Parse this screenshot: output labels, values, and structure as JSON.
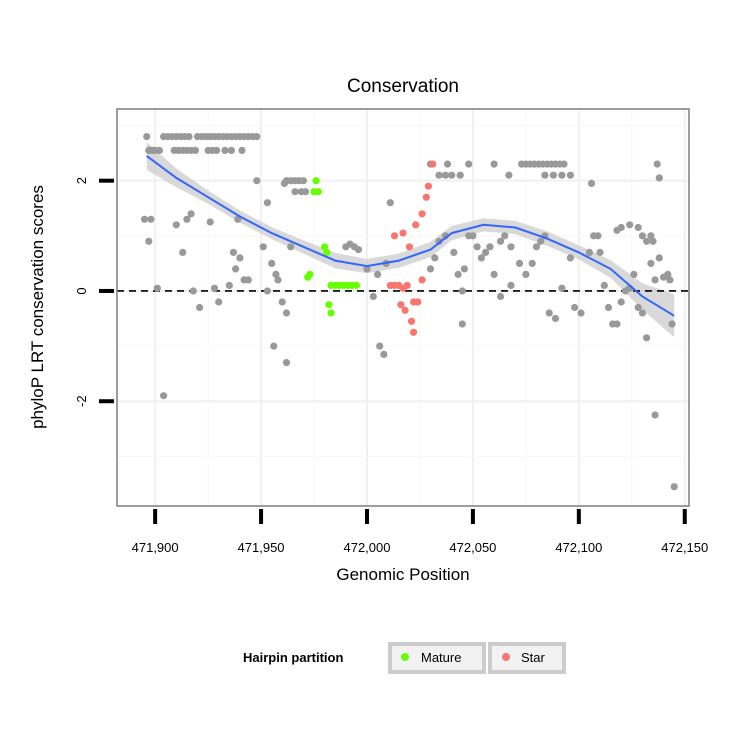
{
  "chart_data": {
    "type": "scatter",
    "title": "Conservation",
    "xlabel": "Genomic Position",
    "ylabel": "phyloP LRT conservation scores",
    "xlim": [
      471882,
      472152
    ],
    "ylim": [
      -3.9,
      3.3
    ],
    "x_ticks": [
      471900,
      471950,
      472000,
      472050,
      472100,
      472150
    ],
    "x_tick_labels": [
      "471,900",
      "471,950",
      "472,000",
      "472,050",
      "472,100",
      "472,150"
    ],
    "y_ticks": [
      -2,
      0,
      2
    ],
    "y_tick_labels": [
      "-2",
      "0",
      "2"
    ],
    "reference_line": {
      "y": 0,
      "style": "dashed"
    },
    "grid": true,
    "legend": {
      "title": "Hairpin partition",
      "placement": "bottom",
      "entries": [
        {
          "label": "Mature",
          "color": "#66ff00"
        },
        {
          "label": "Star",
          "color": "#f8766d"
        }
      ]
    },
    "colors": {
      "other": "#999999",
      "mature": "#66ff00",
      "star": "#f8766d",
      "smooth": "#3366ff",
      "ribbon": "#cccccc"
    },
    "series": [
      {
        "name": "Other",
        "points": [
          [
            471896,
            2.8
          ],
          [
            471897,
            2.55
          ],
          [
            471898,
            2.55
          ],
          [
            471899,
            2.55
          ],
          [
            471900,
            2.55
          ],
          [
            471902,
            2.55
          ],
          [
            471904,
            2.8
          ],
          [
            471906,
            2.8
          ],
          [
            471908,
            2.8
          ],
          [
            471910,
            2.8
          ],
          [
            471912,
            2.8
          ],
          [
            471914,
            2.8
          ],
          [
            471916,
            2.8
          ],
          [
            471909,
            2.55
          ],
          [
            471911,
            2.55
          ],
          [
            471913,
            2.55
          ],
          [
            471915,
            2.55
          ],
          [
            471917,
            2.55
          ],
          [
            471919,
            2.55
          ],
          [
            471920,
            2.8
          ],
          [
            471922,
            2.8
          ],
          [
            471924,
            2.8
          ],
          [
            471926,
            2.8
          ],
          [
            471928,
            2.8
          ],
          [
            471930,
            2.8
          ],
          [
            471932,
            2.8
          ],
          [
            471934,
            2.8
          ],
          [
            471936,
            2.8
          ],
          [
            471938,
            2.8
          ],
          [
            471940,
            2.8
          ],
          [
            471942,
            2.8
          ],
          [
            471944,
            2.8
          ],
          [
            471946,
            2.8
          ],
          [
            471948,
            2.8
          ],
          [
            471925,
            2.55
          ],
          [
            471927,
            2.55
          ],
          [
            471929,
            2.55
          ],
          [
            471933,
            2.55
          ],
          [
            471936,
            2.55
          ],
          [
            471941,
            2.55
          ],
          [
            471962,
            2.0
          ],
          [
            471964,
            2.0
          ],
          [
            471966,
            2.0
          ],
          [
            471968,
            2.0
          ],
          [
            471970,
            2.0
          ],
          [
            471966,
            1.8
          ],
          [
            471969,
            1.8
          ],
          [
            471971,
            1.8
          ],
          [
            472030,
            2.3
          ],
          [
            472038,
            2.3
          ],
          [
            472034,
            2.1
          ],
          [
            472037,
            2.1
          ],
          [
            472040,
            2.1
          ],
          [
            472044,
            2.1
          ],
          [
            472048,
            2.3
          ],
          [
            472060,
            2.3
          ],
          [
            472067,
            2.1
          ],
          [
            472073,
            2.3
          ],
          [
            472075,
            2.3
          ],
          [
            472077,
            2.3
          ],
          [
            472079,
            2.3
          ],
          [
            472081,
            2.3
          ],
          [
            472083,
            2.3
          ],
          [
            472085,
            2.3
          ],
          [
            472087,
            2.3
          ],
          [
            472089,
            2.3
          ],
          [
            472091,
            2.3
          ],
          [
            472093,
            2.3
          ],
          [
            472084,
            2.1
          ],
          [
            472088,
            2.1
          ],
          [
            472092,
            2.1
          ],
          [
            472096,
            2.1
          ],
          [
            472137,
            2.3
          ],
          [
            472138,
            2.05
          ],
          [
            472106,
            1.95
          ],
          [
            471895,
            1.3
          ],
          [
            471898,
            1.3
          ],
          [
            471910,
            1.2
          ],
          [
            471915,
            1.3
          ],
          [
            471917,
            1.4
          ],
          [
            471926,
            1.25
          ],
          [
            471939,
            1.3
          ],
          [
            471948,
            2.0
          ],
          [
            471953,
            1.6
          ],
          [
            471961,
            1.95
          ],
          [
            471897,
            0.9
          ],
          [
            471901,
            0.05
          ],
          [
            471913,
            0.7
          ],
          [
            471918,
            0.0
          ],
          [
            471921,
            -0.3
          ],
          [
            471928,
            0.05
          ],
          [
            471930,
            -0.2
          ],
          [
            471935,
            0.1
          ],
          [
            471937,
            0.7
          ],
          [
            471938,
            0.4
          ],
          [
            471940,
            0.6
          ],
          [
            471942,
            0.2
          ],
          [
            471944,
            0.2
          ],
          [
            471951,
            0.8
          ],
          [
            471953,
            0.0
          ],
          [
            471955,
            0.5
          ],
          [
            471957,
            0.3
          ],
          [
            471958,
            0.2
          ],
          [
            471960,
            -0.2
          ],
          [
            471962,
            -0.4
          ],
          [
            471964,
            0.8
          ],
          [
            471956,
            -1.0
          ],
          [
            471962,
            -1.3
          ],
          [
            471904,
            -1.9
          ],
          [
            471990,
            0.8
          ],
          [
            471992,
            0.85
          ],
          [
            471994,
            0.8
          ],
          [
            471996,
            0.75
          ],
          [
            472000,
            0.4
          ],
          [
            472005,
            0.3
          ],
          [
            472009,
            0.5
          ],
          [
            472006,
            -1.0
          ],
          [
            472008,
            -1.15
          ],
          [
            472003,
            -0.1
          ],
          [
            472011,
            1.6
          ],
          [
            472030,
            0.4
          ],
          [
            472032,
            0.6
          ],
          [
            472034,
            0.9
          ],
          [
            472037,
            1.0
          ],
          [
            472041,
            0.7
          ],
          [
            472043,
            0.3
          ],
          [
            472045,
            0.0
          ],
          [
            472046,
            0.4
          ],
          [
            472048,
            1.0
          ],
          [
            472050,
            1.0
          ],
          [
            472052,
            0.8
          ],
          [
            472054,
            0.6
          ],
          [
            472056,
            0.7
          ],
          [
            472058,
            0.8
          ],
          [
            472060,
            0.3
          ],
          [
            472063,
            0.9
          ],
          [
            472065,
            1.0
          ],
          [
            472068,
            0.8
          ],
          [
            472072,
            0.5
          ],
          [
            472075,
            0.3
          ],
          [
            472078,
            0.5
          ],
          [
            472080,
            0.8
          ],
          [
            472082,
            0.9
          ],
          [
            472084,
            1.0
          ],
          [
            472045,
            -0.6
          ],
          [
            472063,
            -0.1
          ],
          [
            472068,
            0.1
          ],
          [
            472086,
            -0.4
          ],
          [
            472089,
            -0.5
          ],
          [
            472092,
            0.05
          ],
          [
            472096,
            0.6
          ],
          [
            472098,
            -0.3
          ],
          [
            472101,
            -0.4
          ],
          [
            472105,
            0.7
          ],
          [
            472107,
            1.0
          ],
          [
            472109,
            1.0
          ],
          [
            472110,
            0.7
          ],
          [
            472112,
            0.1
          ],
          [
            472114,
            -0.3
          ],
          [
            472116,
            -0.6
          ],
          [
            472118,
            -0.6
          ],
          [
            472120,
            -0.2
          ],
          [
            472122,
            0.0
          ],
          [
            472124,
            0.05
          ],
          [
            472126,
            0.3
          ],
          [
            472128,
            -0.3
          ],
          [
            472130,
            -0.4
          ],
          [
            472132,
            -0.85
          ],
          [
            472134,
            0.5
          ],
          [
            472135,
            0.9
          ],
          [
            472136,
            0.2
          ],
          [
            472138,
            0.6
          ],
          [
            472140,
            0.25
          ],
          [
            472142,
            0.3
          ],
          [
            472143,
            0.2
          ],
          [
            472144,
            -0.6
          ],
          [
            472128,
            1.15
          ],
          [
            472130,
            1.0
          ],
          [
            472132,
            0.9
          ],
          [
            472134,
            1.0
          ],
          [
            472124,
            1.2
          ],
          [
            472120,
            1.15
          ],
          [
            472118,
            1.1
          ],
          [
            472136,
            -2.25
          ],
          [
            472145,
            -3.55
          ]
        ]
      },
      {
        "name": "Mature",
        "points": [
          [
            471976,
            2.0
          ],
          [
            471975,
            1.8
          ],
          [
            471977,
            1.8
          ],
          [
            471972,
            0.25
          ],
          [
            471973,
            0.3
          ],
          [
            471980,
            0.8
          ],
          [
            471981,
            0.7
          ],
          [
            471982,
            -0.25
          ],
          [
            471983,
            -0.4
          ],
          [
            471983,
            0.1
          ],
          [
            471985,
            0.1
          ],
          [
            471987,
            0.1
          ],
          [
            471989,
            0.1
          ],
          [
            471991,
            0.1
          ],
          [
            471993,
            0.1
          ],
          [
            471995,
            0.1
          ]
        ]
      },
      {
        "name": "Star",
        "points": [
          [
            472031,
            2.3
          ],
          [
            472029,
            1.9
          ],
          [
            472028,
            1.7
          ],
          [
            472026,
            1.4
          ],
          [
            472023,
            1.2
          ],
          [
            472017,
            1.05
          ],
          [
            472020,
            0.8
          ],
          [
            472013,
            1.0
          ],
          [
            472011,
            0.1
          ],
          [
            472013,
            0.1
          ],
          [
            472015,
            0.1
          ],
          [
            472017,
            0.05
          ],
          [
            472019,
            0.1
          ],
          [
            472022,
            -0.2
          ],
          [
            472024,
            -0.2
          ],
          [
            472026,
            0.2
          ],
          [
            472016,
            -0.25
          ],
          [
            472018,
            -0.35
          ],
          [
            472021,
            -0.55
          ],
          [
            472022,
            -0.75
          ]
        ]
      }
    ],
    "smooth": {
      "x": [
        471896,
        471910,
        471925,
        471940,
        471955,
        471970,
        471985,
        472000,
        472015,
        472030,
        472040,
        472055,
        472070,
        472085,
        472100,
        472115,
        472130,
        472145
      ],
      "y": [
        2.45,
        2.05,
        1.7,
        1.35,
        1.05,
        0.8,
        0.55,
        0.45,
        0.55,
        0.75,
        1.05,
        1.2,
        1.15,
        0.95,
        0.7,
        0.4,
        -0.1,
        -0.45
      ],
      "lower": [
        2.2,
        1.88,
        1.58,
        1.24,
        0.94,
        0.68,
        0.41,
        0.32,
        0.42,
        0.61,
        0.92,
        1.08,
        1.03,
        0.82,
        0.57,
        0.24,
        -0.34,
        -0.84
      ],
      "upper": [
        2.7,
        2.22,
        1.82,
        1.46,
        1.16,
        0.92,
        0.69,
        0.58,
        0.68,
        0.89,
        1.18,
        1.32,
        1.27,
        1.08,
        0.83,
        0.56,
        0.14,
        -0.06
      ]
    }
  }
}
